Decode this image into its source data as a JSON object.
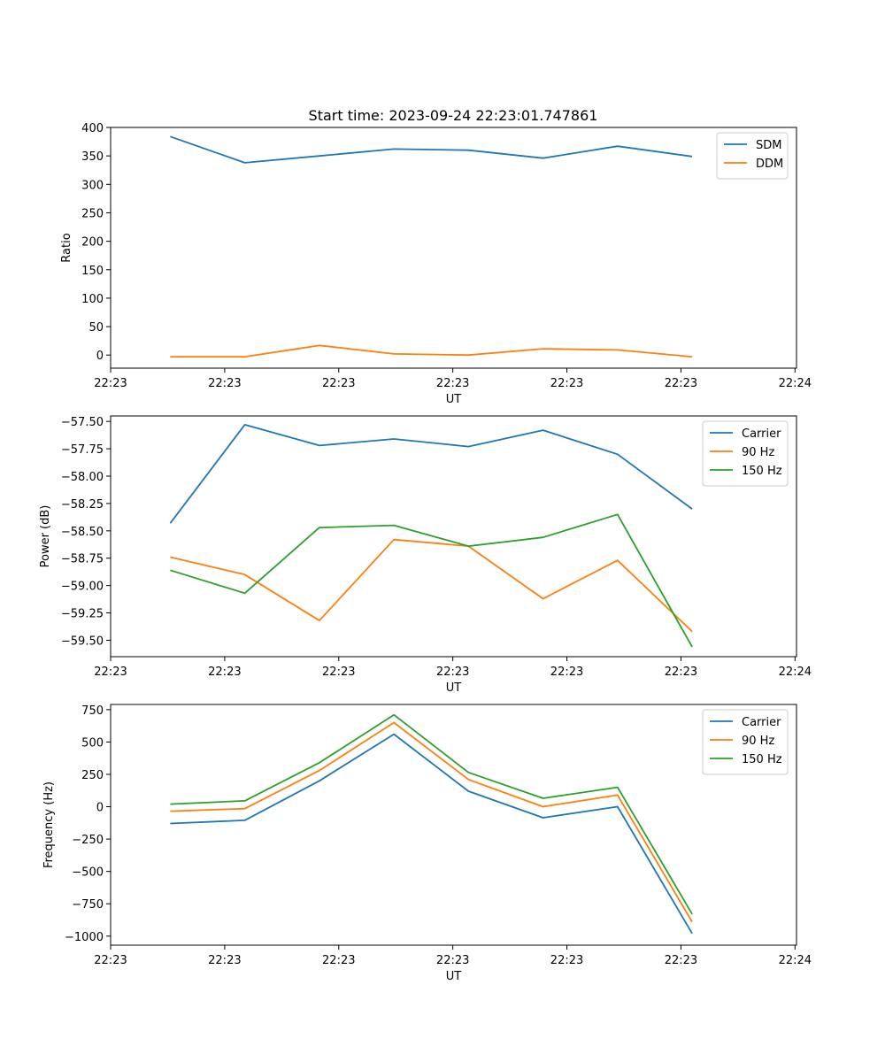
{
  "figure_title": "Start time: 2023-09-24 22:23:01.747861",
  "chart_data": [
    {
      "type": "line",
      "title": "Start time: 2023-09-24 22:23:01.747861",
      "xlabel": "UT",
      "ylabel": "Ratio",
      "x": [
        1,
        2,
        3,
        4,
        5,
        6,
        7,
        8
      ],
      "xlim": [
        0.2,
        9.4
      ],
      "xtick_positions": [
        0.2,
        1.73,
        3.26,
        4.79,
        6.32,
        7.85,
        9.38
      ],
      "xtick_labels": [
        "22:23",
        "22:23",
        "22:23",
        "22:23",
        "22:23",
        "22:23",
        "22:24"
      ],
      "ylim": [
        -23,
        400
      ],
      "yticks": [
        0,
        50,
        100,
        150,
        200,
        250,
        300,
        350,
        400
      ],
      "ytick_labels": [
        "0",
        "50",
        "100",
        "150",
        "200",
        "250",
        "300",
        "350",
        "400"
      ],
      "legend_position": "top-right",
      "series": [
        {
          "name": "SDM",
          "color": "#1f77b4",
          "values": [
            384,
            338,
            350,
            362,
            360,
            346,
            367,
            349
          ]
        },
        {
          "name": "DDM",
          "color": "#ff7f0e",
          "values": [
            -3,
            -3,
            17,
            2,
            0,
            11,
            9,
            -3
          ]
        }
      ]
    },
    {
      "type": "line",
      "title": "",
      "xlabel": "UT",
      "ylabel": "Power (dB)",
      "x": [
        1,
        2,
        3,
        4,
        5,
        6,
        7,
        8
      ],
      "xlim": [
        0.2,
        9.4
      ],
      "xtick_positions": [
        0.2,
        1.73,
        3.26,
        4.79,
        6.32,
        7.85,
        9.38
      ],
      "xtick_labels": [
        "22:23",
        "22:23",
        "22:23",
        "22:23",
        "22:23",
        "22:23",
        "22:24"
      ],
      "ylim": [
        -59.65,
        -57.45
      ],
      "yticks": [
        -57.5,
        -57.75,
        -58.0,
        -58.25,
        -58.5,
        -58.75,
        -59.0,
        -59.25,
        -59.5
      ],
      "ytick_labels": [
        "−57.50",
        "−57.75",
        "−58.00",
        "−58.25",
        "−58.50",
        "−58.75",
        "−59.00",
        "−59.25",
        "−59.50"
      ],
      "legend_position": "top-right",
      "series": [
        {
          "name": "Carrier",
          "color": "#1f77b4",
          "values": [
            -58.43,
            -57.53,
            -57.72,
            -57.66,
            -57.73,
            -57.58,
            -57.8,
            -58.3
          ]
        },
        {
          "name": "90 Hz",
          "color": "#ff7f0e",
          "values": [
            -58.74,
            -58.9,
            -59.32,
            -58.58,
            -58.64,
            -59.12,
            -58.77,
            -59.42
          ]
        },
        {
          "name": "150 Hz",
          "color": "#2ca02c",
          "values": [
            -58.86,
            -59.07,
            -58.47,
            -58.45,
            -58.64,
            -58.56,
            -58.35,
            -59.56
          ]
        }
      ]
    },
    {
      "type": "line",
      "title": "",
      "xlabel": "UT",
      "ylabel": "Frequency (Hz)",
      "x": [
        1,
        2,
        3,
        4,
        5,
        6,
        7,
        8
      ],
      "xlim": [
        0.2,
        9.4
      ],
      "xtick_positions": [
        0.2,
        1.73,
        3.26,
        4.79,
        6.32,
        7.85,
        9.38
      ],
      "xtick_labels": [
        "22:23",
        "22:23",
        "22:23",
        "22:23",
        "22:23",
        "22:23",
        "22:24"
      ],
      "ylim": [
        -1070,
        790
      ],
      "yticks": [
        750,
        500,
        250,
        0,
        -250,
        -500,
        -750,
        -1000
      ],
      "ytick_labels": [
        "750",
        "500",
        "250",
        "0",
        "−250",
        "−500",
        "−750",
        "−1000"
      ],
      "legend_position": "top-right",
      "series": [
        {
          "name": "Carrier",
          "color": "#1f77b4",
          "values": [
            -130,
            -105,
            200,
            560,
            120,
            -85,
            0,
            -980
          ]
        },
        {
          "name": "90 Hz",
          "color": "#ff7f0e",
          "values": [
            -35,
            -15,
            280,
            650,
            210,
            0,
            90,
            -890
          ]
        },
        {
          "name": "150 Hz",
          "color": "#2ca02c",
          "values": [
            20,
            45,
            340,
            710,
            265,
            65,
            150,
            -830
          ]
        }
      ]
    }
  ]
}
